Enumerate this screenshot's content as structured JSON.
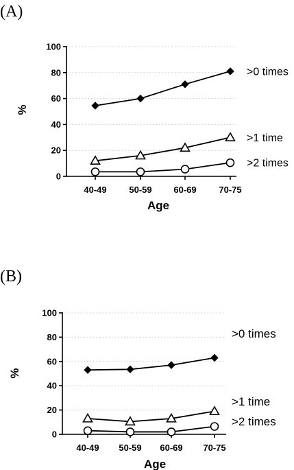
{
  "chart_data": [
    {
      "panel_label": "(A)",
      "type": "line",
      "xlabel": "Age",
      "ylabel": "%",
      "categories": [
        "40-49",
        "50-59",
        "60-69",
        "70-75"
      ],
      "ylim": [
        0,
        100
      ],
      "yticks": [
        "0",
        "20",
        "40",
        "60",
        "80",
        "100"
      ],
      "grid": "horizontal-dotted",
      "series": [
        {
          "name": ">0 times",
          "marker": "filled-diamond",
          "values": [
            54.5,
            60,
            71,
            81
          ]
        },
        {
          "name": ">1 time",
          "marker": "open-triangle",
          "values": [
            12,
            16,
            22,
            30
          ]
        },
        {
          "name": ">2 times",
          "marker": "open-circle",
          "values": [
            3.5,
            3.5,
            5.5,
            10.5
          ]
        }
      ]
    },
    {
      "panel_label": "(B)",
      "type": "line",
      "xlabel": "Age",
      "ylabel": "%",
      "categories": [
        "40-49",
        "50-59",
        "60-69",
        "70-75"
      ],
      "ylim": [
        0,
        100
      ],
      "yticks": [
        "0",
        "20",
        "40",
        "60",
        "80",
        "100"
      ],
      "grid": "horizontal-dotted",
      "series": [
        {
          "name": ">0 times",
          "marker": "filled-diamond",
          "values": [
            53,
            53.5,
            57,
            63
          ]
        },
        {
          "name": ">1 time",
          "marker": "open-triangle",
          "values": [
            13,
            10.5,
            13,
            19
          ]
        },
        {
          "name": ">2 times",
          "marker": "open-circle",
          "values": [
            3,
            2,
            2,
            6.5
          ]
        }
      ]
    }
  ]
}
